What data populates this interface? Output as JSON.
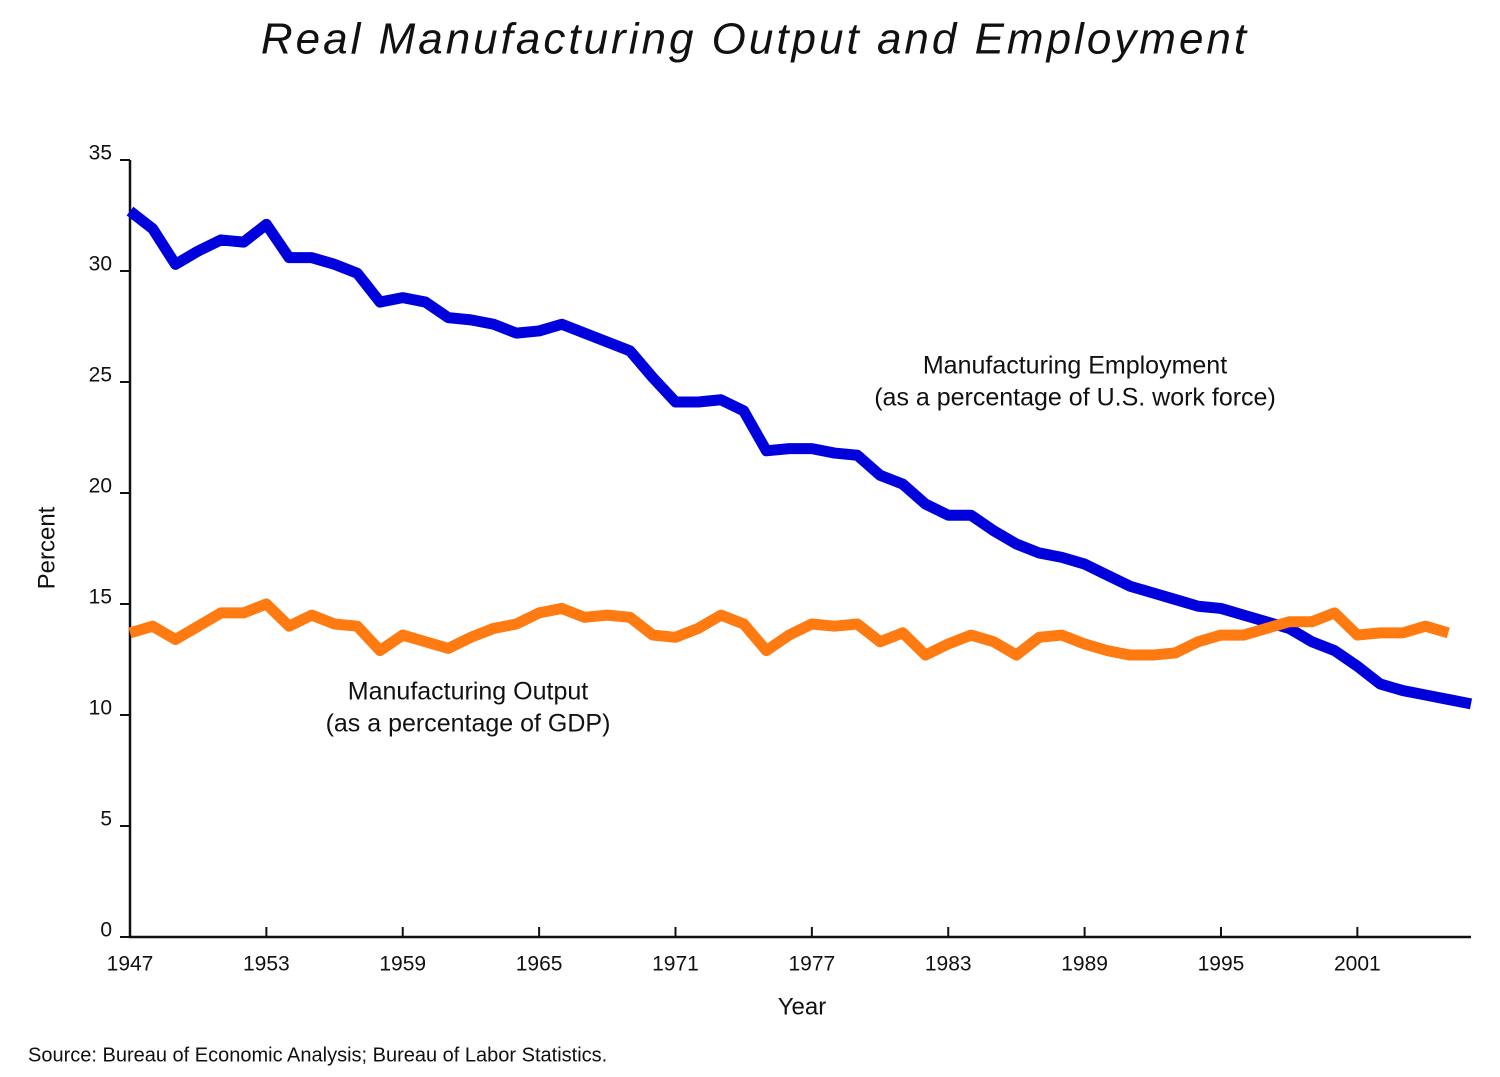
{
  "chart_data": {
    "type": "line",
    "title": "Real Manufacturing Output and Employment",
    "xlabel": "Year",
    "ylabel": "Percent",
    "source": "Source: Bureau of Economic Analysis; Bureau of Labor Statistics.",
    "x": [
      1947,
      1948,
      1949,
      1950,
      1951,
      1952,
      1953,
      1954,
      1955,
      1956,
      1957,
      1958,
      1959,
      1960,
      1961,
      1962,
      1963,
      1964,
      1965,
      1966,
      1967,
      1968,
      1969,
      1970,
      1971,
      1972,
      1973,
      1974,
      1975,
      1976,
      1977,
      1978,
      1979,
      1980,
      1981,
      1982,
      1983,
      1984,
      1985,
      1986,
      1987,
      1988,
      1989,
      1990,
      1991,
      1992,
      1993,
      1994,
      1995,
      1996,
      1997,
      1998,
      1999,
      2000,
      2001,
      2002,
      2003,
      2004,
      2005,
      2006
    ],
    "series": [
      {
        "name": "Manufacturing Employment",
        "description": "(as a percentage of U.S. work force)",
        "color": "#0000dd",
        "values": [
          32.7,
          31.9,
          30.3,
          30.9,
          31.4,
          31.3,
          32.1,
          30.6,
          30.6,
          30.3,
          29.9,
          28.6,
          28.8,
          28.6,
          27.9,
          27.8,
          27.6,
          27.2,
          27.3,
          27.6,
          27.2,
          26.8,
          26.4,
          25.2,
          24.1,
          24.1,
          24.2,
          23.7,
          21.9,
          22.0,
          22.0,
          21.8,
          21.7,
          20.8,
          20.4,
          19.5,
          19.0,
          19.0,
          18.3,
          17.7,
          17.3,
          17.1,
          16.8,
          16.3,
          15.8,
          15.5,
          15.2,
          14.9,
          14.8,
          14.5,
          14.2,
          13.9,
          13.3,
          12.9,
          12.2,
          11.4,
          11.1,
          10.9,
          10.7,
          10.5
        ]
      },
      {
        "name": "Manufacturing Output",
        "description": "(as a percentage of GDP)",
        "color": "#ff7a10",
        "values": [
          13.7,
          14.0,
          13.4,
          14.0,
          14.6,
          14.6,
          15.0,
          14.0,
          14.5,
          14.1,
          14.0,
          12.9,
          13.6,
          13.3,
          13.0,
          13.5,
          13.9,
          14.1,
          14.6,
          14.8,
          14.4,
          14.5,
          14.4,
          13.6,
          13.5,
          13.9,
          14.5,
          14.1,
          12.9,
          13.6,
          14.1,
          14.0,
          14.1,
          13.3,
          13.7,
          12.7,
          13.2,
          13.6,
          13.3,
          12.7,
          13.5,
          13.6,
          13.2,
          12.9,
          12.7,
          12.7,
          12.8,
          13.3,
          13.6,
          13.6,
          13.9,
          14.2,
          14.2,
          14.6,
          13.6,
          13.7,
          13.7,
          14.0,
          13.7,
          null
        ]
      }
    ],
    "xlim": [
      1947,
      2006
    ],
    "xticks": [
      1947,
      1953,
      1959,
      1965,
      1971,
      1977,
      1983,
      1989,
      1995,
      2001
    ],
    "ylim": [
      0,
      35
    ],
    "yticks": [
      0,
      5,
      10,
      15,
      20,
      25,
      30,
      35
    ],
    "grid": false
  }
}
